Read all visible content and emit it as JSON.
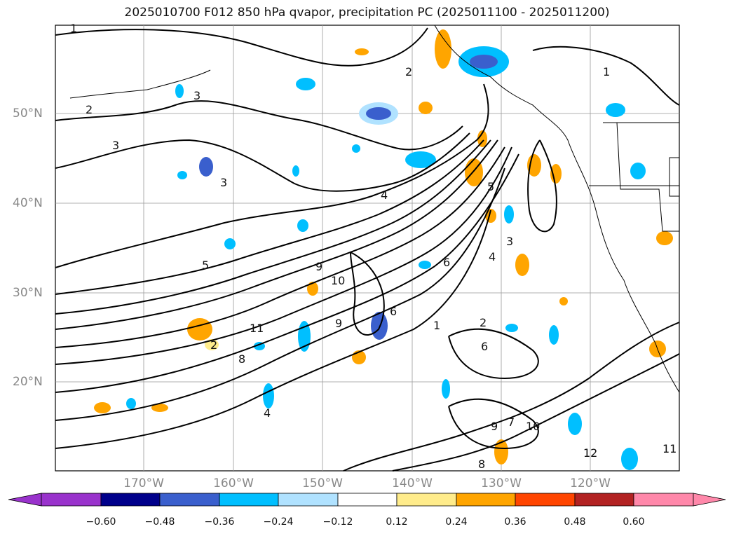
{
  "title": "2025010700 F012 850 hPa qvapor, precipitation PC (2025011100 - 2025011200)",
  "map": {
    "lat_labels": [
      "50°N",
      "40°N",
      "30°N",
      "20°N"
    ],
    "lon_labels": [
      "170°W",
      "160°W",
      "150°W",
      "140°W",
      "130°W",
      "120°W"
    ],
    "contour_labels": [
      "1",
      "2",
      "3",
      "3",
      "3",
      "2",
      "4",
      "5",
      "9",
      "10",
      "11",
      "9",
      "8",
      "6",
      "6",
      "4",
      "2",
      "1",
      "2",
      "3",
      "4",
      "5",
      "6",
      "7",
      "8",
      "9",
      "10",
      "11",
      "12",
      "1"
    ]
  },
  "colorbar": {
    "ticks": [
      "−0.60",
      "−0.48",
      "−0.36",
      "−0.24",
      "−0.12",
      "0.12",
      "0.24",
      "0.36",
      "0.48",
      "0.60"
    ],
    "colors": [
      "#9932cc",
      "#00008b",
      "#3a5fcd",
      "#00bfff",
      "#b0e2ff",
      "#ffffff",
      "#ffec8b",
      "#ffa500",
      "#ff4500",
      "#b22222",
      "#ff88aa"
    ]
  }
}
